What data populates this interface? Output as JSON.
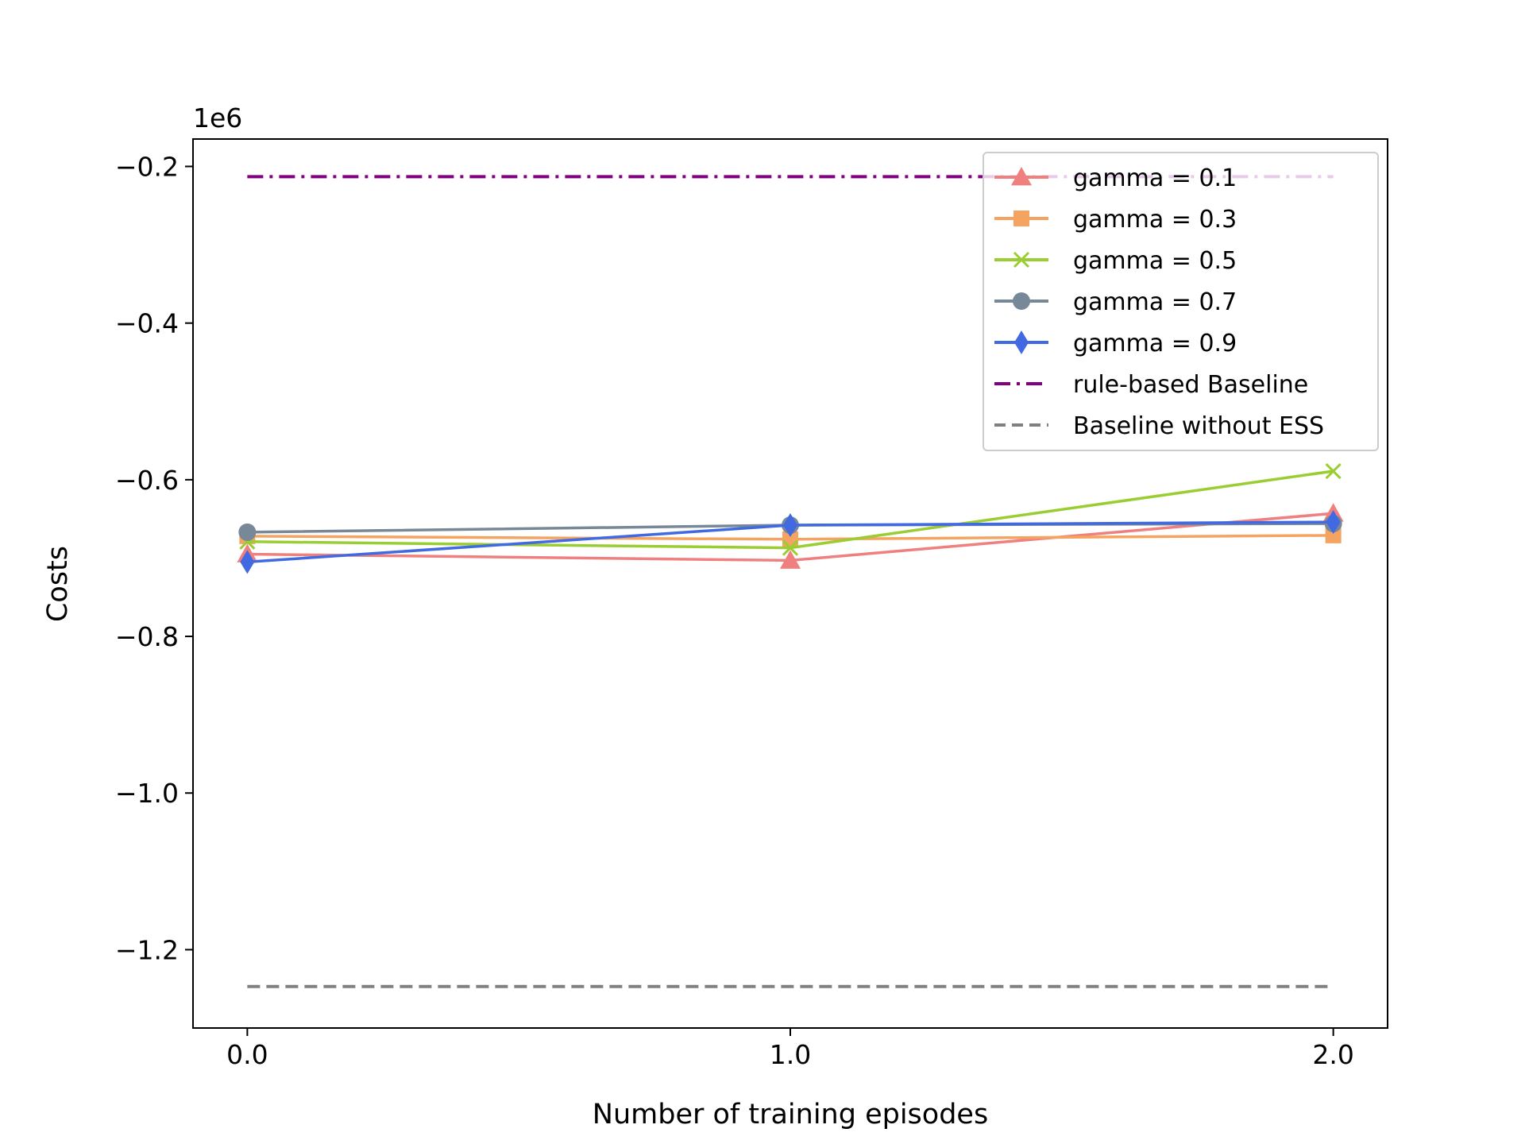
{
  "chart_data": {
    "type": "line",
    "title": "",
    "xlabel": "Number of training episodes",
    "ylabel": "Costs",
    "y_offset_label": "1e6",
    "xlim": [
      -0.1,
      2.1
    ],
    "ylim": [
      -1.3,
      -0.165
    ],
    "x_ticks": [
      0.0,
      1.0,
      2.0
    ],
    "x_tick_labels": [
      "0.0",
      "1.0",
      "2.0"
    ],
    "y_ticks": [
      -0.2,
      -0.4,
      -0.6,
      -0.8,
      -1.0,
      -1.2
    ],
    "y_tick_labels": [
      "−0.2",
      "−0.4",
      "−0.6",
      "−0.8",
      "−1.0",
      "−1.2"
    ],
    "grid": false,
    "legend_position": "top-right",
    "x": [
      0.0,
      1.0,
      2.0
    ],
    "series": [
      {
        "name": "gamma = 0.1",
        "color": "#f08080",
        "marker": "triangle",
        "style": "solid",
        "values": [
          -0.695,
          -0.703,
          -0.643
        ]
      },
      {
        "name": "gamma = 0.3",
        "color": "#f4a460",
        "marker": "square",
        "style": "solid",
        "values": [
          -0.672,
          -0.676,
          -0.671
        ]
      },
      {
        "name": "gamma = 0.5",
        "color": "#9acd32",
        "marker": "x",
        "style": "solid",
        "values": [
          -0.679,
          -0.687,
          -0.589
        ]
      },
      {
        "name": "gamma = 0.7",
        "color": "#778899",
        "marker": "circle",
        "style": "solid",
        "values": [
          -0.667,
          -0.658,
          -0.656
        ]
      },
      {
        "name": "gamma = 0.9",
        "color": "#4169e1",
        "marker": "diamond",
        "style": "solid",
        "values": [
          -0.705,
          -0.658,
          -0.654
        ]
      },
      {
        "name": "rule-based Baseline",
        "color": "#800080",
        "marker": "none",
        "style": "dashdot",
        "values": [
          -0.213,
          -0.213,
          -0.213
        ]
      },
      {
        "name": "Baseline without ESS",
        "color": "#808080",
        "marker": "none",
        "style": "dashed",
        "values": [
          -1.247,
          -1.247,
          -1.247
        ]
      }
    ]
  }
}
